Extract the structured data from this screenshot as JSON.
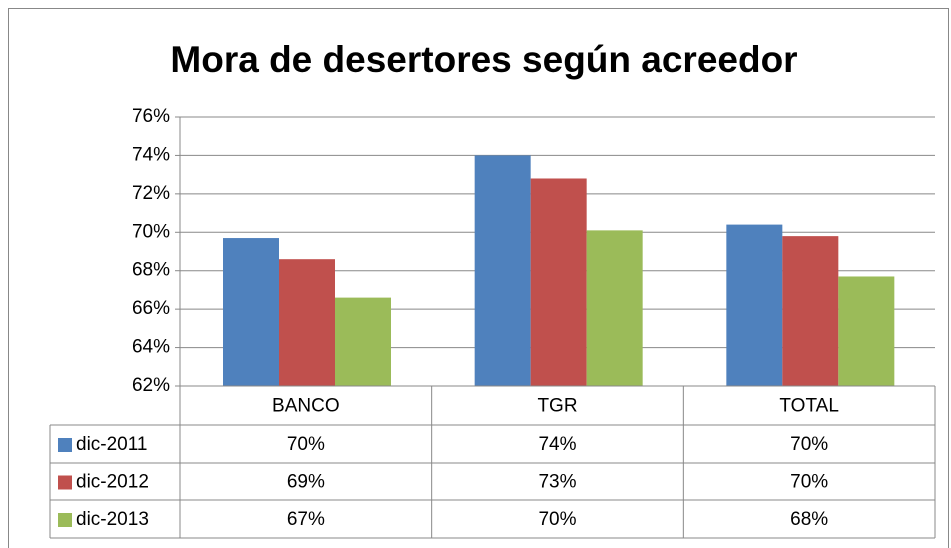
{
  "chart_data": {
    "type": "bar",
    "title": "Mora de desertores según acreedor",
    "categories": [
      "BANCO",
      "TGR",
      "TOTAL"
    ],
    "series": [
      {
        "name": "dic-2011",
        "color": "#4f81bd",
        "values": [
          69.7,
          74.0,
          70.4
        ],
        "value_labels": [
          "70%",
          "74%",
          "70%"
        ]
      },
      {
        "name": "dic-2012",
        "color": "#c0504d",
        "values": [
          68.6,
          72.8,
          69.8
        ],
        "value_labels": [
          "69%",
          "73%",
          "70%"
        ]
      },
      {
        "name": "dic-2013",
        "color": "#9bbb59",
        "values": [
          66.6,
          70.1,
          67.7
        ],
        "value_labels": [
          "67%",
          "70%",
          "68%"
        ]
      }
    ],
    "ylim": [
      62,
      76
    ],
    "yticks": [
      {
        "value": 62,
        "label": "62%"
      },
      {
        "value": 64,
        "label": "64%"
      },
      {
        "value": 66,
        "label": "66%"
      },
      {
        "value": 68,
        "label": "68%"
      },
      {
        "value": 70,
        "label": "70%"
      },
      {
        "value": 72,
        "label": "72%"
      },
      {
        "value": 74,
        "label": "74%"
      },
      {
        "value": 76,
        "label": "76%"
      }
    ],
    "grid": true
  }
}
